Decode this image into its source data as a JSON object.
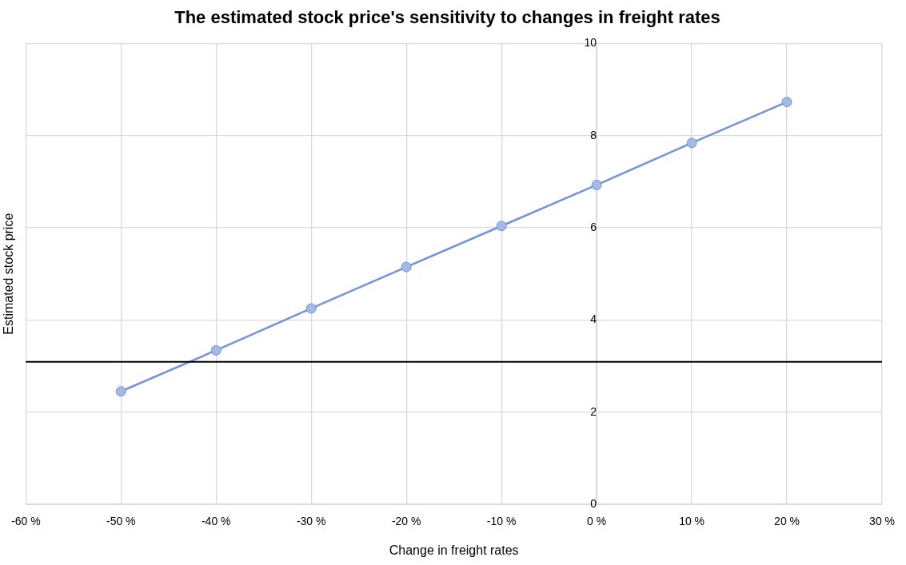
{
  "chart_data": {
    "type": "line",
    "title": "The estimated stock price's sensitivity to changes in freight rates",
    "xlabel": "Change in freight rates",
    "ylabel": "Estimated stock price",
    "x": [
      -50,
      -40,
      -30,
      -20,
      -10,
      0,
      10,
      20
    ],
    "series": [
      {
        "color": "#7393d9",
        "values": [
          2.45,
          3.34,
          4.25,
          5.15,
          6.04,
          6.93,
          7.84,
          8.73
        ]
      }
    ],
    "xlim": [
      -60,
      30
    ],
    "xticks": [
      {
        "value": -60,
        "label": "-60 %"
      },
      {
        "value": -50,
        "label": "-50 %"
      },
      {
        "value": -40,
        "label": "-40 %"
      },
      {
        "value": -30,
        "label": "-30 %"
      },
      {
        "value": -20,
        "label": "-20 %"
      },
      {
        "value": -10,
        "label": "-10 %"
      },
      {
        "value": 0,
        "label": "0 %"
      },
      {
        "value": 10,
        "label": "10 %"
      },
      {
        "value": 20,
        "label": "20 %"
      },
      {
        "value": 30,
        "label": "30 %"
      }
    ],
    "ylim": [
      0,
      10
    ],
    "yticks": [
      0,
      2,
      4,
      6,
      8,
      10
    ],
    "ref_lines": [
      {
        "axis": "y",
        "value": 3.09,
        "color": "#000000"
      }
    ],
    "grid": true,
    "legend": false,
    "marker": "circle",
    "line_style": "solid"
  }
}
